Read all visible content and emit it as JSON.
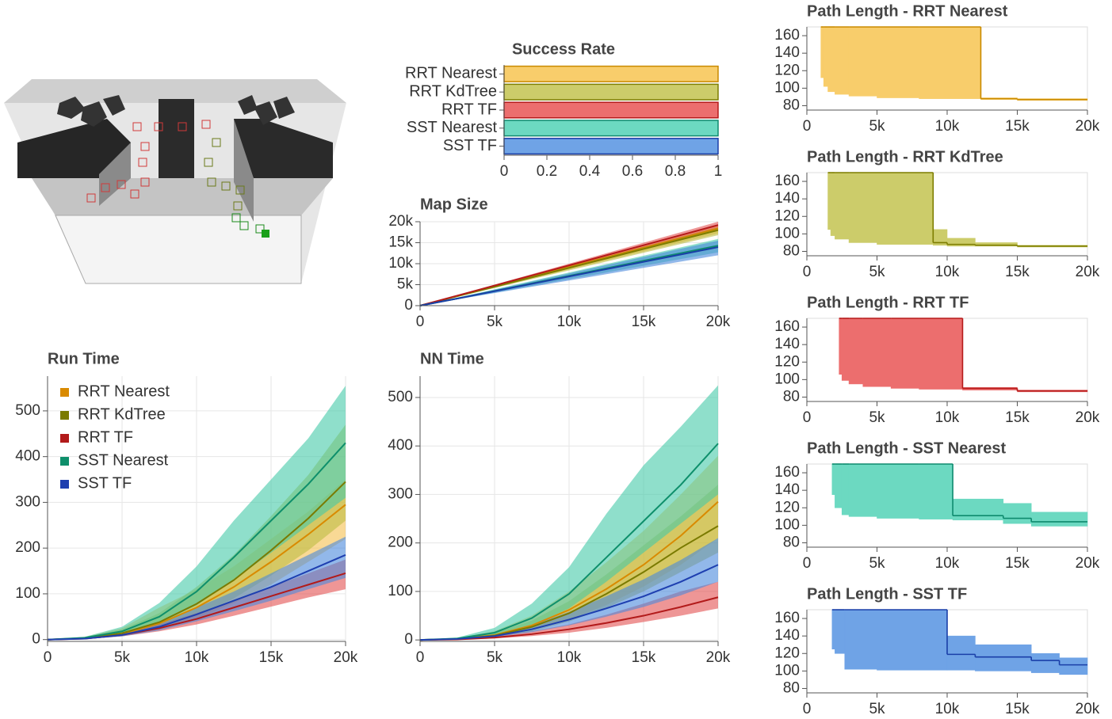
{
  "chart_data": [
    {
      "type": "barh",
      "title": "Success Rate",
      "categories": [
        "RRT Nearest",
        "RRT KdTree",
        "RRT TF",
        "SST Nearest",
        "SST TF"
      ],
      "values": [
        1,
        1,
        1,
        1,
        1
      ],
      "colors": [
        "#f8cd6b",
        "#cccc6a",
        "#ec6e6e",
        "#6cd9c1",
        "#6fa3e6"
      ],
      "edge_colors": [
        "#c98a00",
        "#7d7d00",
        "#b51a1a",
        "#0e8a6e",
        "#1a3fa8"
      ],
      "xlim": [
        0,
        1
      ],
      "xticks": [
        0,
        0.2,
        0.4,
        0.6,
        0.8,
        1
      ]
    },
    {
      "type": "line",
      "title": "Map Size",
      "grid": true,
      "x": [
        0,
        2500,
        5000,
        7500,
        10000,
        12500,
        15000,
        17500,
        20000
      ],
      "xlim": [
        0,
        20000
      ],
      "xticks": [
        0,
        {
          "value": 5000,
          "label": "5k"
        },
        {
          "value": 10000,
          "label": "10k"
        },
        {
          "value": 15000,
          "label": "15k"
        },
        {
          "value": 20000,
          "label": "20k"
        }
      ],
      "ylim": [
        0,
        20000
      ],
      "yticks": [
        0,
        {
          "value": 5000,
          "label": "5k"
        },
        {
          "value": 10000,
          "label": "10k"
        },
        {
          "value": 15000,
          "label": "15k"
        },
        {
          "value": 20000,
          "label": "20k"
        }
      ],
      "series": [
        {
          "color": "#c98a00",
          "fill": "#f5c04f",
          "values": [
            0,
            2300,
            4600,
            6900,
            9200,
            11500,
            13800,
            16100,
            18400
          ],
          "lower": [
            0,
            2150,
            4300,
            6450,
            8600,
            10750,
            12900,
            15050,
            17200
          ],
          "upper": [
            0,
            2400,
            4800,
            7200,
            9600,
            12000,
            14400,
            16800,
            19200
          ]
        },
        {
          "color": "#7d7d00",
          "fill": "#bdbd45",
          "values": [
            0,
            2250,
            4500,
            6750,
            9000,
            11250,
            13500,
            15750,
            18000
          ],
          "lower": [
            0,
            2100,
            4200,
            6300,
            8400,
            10500,
            12600,
            14700,
            16800
          ],
          "upper": [
            0,
            2350,
            4700,
            7050,
            9400,
            11750,
            14100,
            16450,
            18800
          ]
        },
        {
          "color": "#b51a1a",
          "fill": "#e35050",
          "values": [
            0,
            2400,
            4800,
            7200,
            9600,
            12000,
            14400,
            16800,
            19200
          ],
          "lower": [
            0,
            2300,
            4600,
            6900,
            9200,
            11500,
            13800,
            16100,
            18400
          ],
          "upper": [
            0,
            2500,
            5000,
            7500,
            10000,
            12500,
            15000,
            17500,
            20000
          ]
        },
        {
          "color": "#0e8a6e",
          "fill": "#45c9a8",
          "values": [
            0,
            1700,
            3500,
            5300,
            7100,
            8900,
            10700,
            12500,
            14300
          ],
          "lower": [
            0,
            1500,
            3100,
            4700,
            6300,
            7900,
            9500,
            11100,
            12700
          ],
          "upper": [
            0,
            1900,
            3900,
            5900,
            7900,
            9900,
            11900,
            13900,
            15900
          ]
        },
        {
          "color": "#1a3fa8",
          "fill": "#4a88dc",
          "values": [
            0,
            1700,
            3450,
            5200,
            6950,
            8700,
            10450,
            12200,
            13950
          ],
          "lower": [
            0,
            1500,
            3000,
            4500,
            6000,
            7500,
            9000,
            10500,
            12000
          ],
          "upper": [
            0,
            1850,
            3800,
            5750,
            7700,
            9650,
            11600,
            13550,
            15500
          ]
        }
      ]
    },
    {
      "type": "line",
      "title": "Run Time",
      "grid": true,
      "legend": "top-left",
      "x": [
        0,
        2500,
        5000,
        7500,
        10000,
        12500,
        15000,
        17500,
        20000
      ],
      "xlim": [
        0,
        20000
      ],
      "xticks": [
        0,
        {
          "value": 5000,
          "label": "5k"
        },
        {
          "value": 10000,
          "label": "10k"
        },
        {
          "value": 15000,
          "label": "15k"
        },
        {
          "value": 20000,
          "label": "20k"
        }
      ],
      "ylim": [
        -4,
        576
      ],
      "yticks": [
        0,
        100,
        200,
        300,
        400,
        500
      ],
      "series": [
        {
          "name": "RRT Nearest",
          "color": "#d98a00",
          "fill": "#f5c04f",
          "values": [
            0,
            3,
            12,
            35,
            70,
            115,
            170,
            230,
            295
          ],
          "lower": [
            0,
            2,
            8,
            22,
            45,
            80,
            120,
            170,
            220
          ],
          "upper": [
            0,
            6,
            25,
            70,
            110,
            160,
            220,
            280,
            350
          ]
        },
        {
          "name": "RRT KdTree",
          "color": "#7a7a00",
          "fill": "#bdbd45",
          "values": [
            0,
            3,
            14,
            38,
            78,
            130,
            195,
            265,
            345
          ],
          "lower": [
            0,
            2,
            9,
            25,
            52,
            90,
            140,
            195,
            260
          ],
          "upper": [
            0,
            5,
            22,
            58,
            115,
            185,
            270,
            360,
            470
          ]
        },
        {
          "name": "RRT TF",
          "color": "#b21a1a",
          "fill": "#e35050",
          "values": [
            0,
            2,
            10,
            25,
            45,
            70,
            95,
            120,
            145
          ],
          "lower": [
            0,
            1,
            7,
            18,
            33,
            52,
            72,
            92,
            110
          ],
          "upper": [
            0,
            3,
            14,
            33,
            58,
            85,
            115,
            145,
            175
          ]
        },
        {
          "name": "SST Nearest",
          "color": "#0e8f6b",
          "fill": "#45c9a8",
          "values": [
            0,
            4,
            18,
            50,
            105,
            180,
            260,
            340,
            430
          ],
          "lower": [
            0,
            3,
            12,
            35,
            75,
            130,
            190,
            250,
            310
          ],
          "upper": [
            0,
            6,
            28,
            80,
            160,
            260,
            350,
            440,
            555
          ]
        },
        {
          "name": "SST TF",
          "color": "#1e3fb0",
          "fill": "#4a88dc",
          "values": [
            0,
            2,
            10,
            28,
            55,
            85,
            115,
            150,
            185
          ],
          "lower": [
            0,
            1,
            7,
            20,
            40,
            62,
            85,
            110,
            135
          ],
          "upper": [
            0,
            3,
            14,
            36,
            70,
            105,
            145,
            185,
            225
          ]
        }
      ]
    },
    {
      "type": "line",
      "title": "NN Time",
      "grid": true,
      "x": [
        0,
        2500,
        5000,
        7500,
        10000,
        12500,
        15000,
        17500,
        20000
      ],
      "xlim": [
        0,
        20000
      ],
      "xticks": [
        0,
        {
          "value": 5000,
          "label": "5k"
        },
        {
          "value": 10000,
          "label": "10k"
        },
        {
          "value": 15000,
          "label": "15k"
        },
        {
          "value": 20000,
          "label": "20k"
        }
      ],
      "ylim": [
        -3,
        544
      ],
      "yticks": [
        0,
        100,
        200,
        300,
        400,
        500
      ],
      "series": [
        {
          "color": "#d98a00",
          "fill": "#f5c04f",
          "values": [
            0,
            2,
            10,
            30,
            62,
            105,
            155,
            215,
            285
          ],
          "lower": [
            0,
            1,
            6,
            20,
            42,
            72,
            110,
            155,
            210
          ],
          "upper": [
            0,
            4,
            18,
            50,
            100,
            160,
            225,
            300,
            380
          ]
        },
        {
          "color": "#7a7a00",
          "fill": "#bdbd45",
          "values": [
            0,
            2,
            9,
            27,
            55,
            95,
            140,
            190,
            235
          ],
          "lower": [
            0,
            1,
            6,
            18,
            38,
            66,
            100,
            140,
            180
          ],
          "upper": [
            0,
            3,
            14,
            40,
            80,
            135,
            195,
            255,
            320
          ]
        },
        {
          "color": "#b21a1a",
          "fill": "#e35050",
          "values": [
            0,
            1,
            5,
            12,
            22,
            35,
            50,
            68,
            88
          ],
          "lower": [
            0,
            1,
            3,
            8,
            15,
            25,
            37,
            50,
            65
          ],
          "upper": [
            0,
            2,
            8,
            18,
            32,
            52,
            75,
            100,
            120
          ]
        },
        {
          "color": "#0e8f6b",
          "fill": "#45c9a8",
          "values": [
            0,
            3,
            15,
            45,
            95,
            170,
            245,
            320,
            405
          ],
          "lower": [
            0,
            2,
            10,
            30,
            65,
            120,
            180,
            240,
            300
          ],
          "upper": [
            0,
            5,
            25,
            75,
            150,
            260,
            360,
            440,
            525
          ]
        },
        {
          "color": "#1e3fb0",
          "fill": "#4a88dc",
          "values": [
            0,
            2,
            8,
            22,
            42,
            65,
            90,
            120,
            155
          ],
          "lower": [
            0,
            1,
            6,
            16,
            30,
            48,
            68,
            92,
            120
          ],
          "upper": [
            0,
            3,
            11,
            30,
            58,
            90,
            125,
            165,
            210
          ]
        }
      ]
    },
    {
      "type": "step",
      "title": "Path Length - RRT Nearest",
      "color": "#c98a00",
      "fill": "#f8cd6b",
      "xlim": [
        0,
        20000
      ],
      "xticks": [
        0,
        {
          "value": 5000,
          "label": "5k"
        },
        {
          "value": 10000,
          "label": "10k"
        },
        {
          "value": 15000,
          "label": "15k"
        },
        {
          "value": 20000,
          "label": "20k"
        }
      ],
      "ylim": [
        75,
        170
      ],
      "yticks": [
        80,
        100,
        120,
        140,
        160
      ],
      "x": [
        1000,
        1200,
        1500,
        2000,
        3000,
        5000,
        8000,
        12400,
        15000
      ],
      "values": [
        170,
        170,
        170,
        170,
        170,
        170,
        170,
        88,
        87
      ],
      "lower": [
        112,
        102,
        96,
        93,
        91,
        89,
        88,
        87,
        86
      ],
      "upper": [
        170,
        170,
        170,
        170,
        170,
        170,
        170,
        89,
        88
      ]
    },
    {
      "type": "step",
      "title": "Path Length - RRT KdTree",
      "color": "#7d7d00",
      "fill": "#cccc6a",
      "xlim": [
        0,
        20000
      ],
      "xticks": [
        0,
        {
          "value": 5000,
          "label": "5k"
        },
        {
          "value": 10000,
          "label": "10k"
        },
        {
          "value": 15000,
          "label": "15k"
        },
        {
          "value": 20000,
          "label": "20k"
        }
      ],
      "ylim": [
        75,
        170
      ],
      "yticks": [
        80,
        100,
        120,
        140,
        160
      ],
      "x": [
        1500,
        1700,
        2000,
        3000,
        5000,
        9000,
        10000,
        12000,
        15000
      ],
      "values": [
        170,
        170,
        170,
        170,
        170,
        90,
        88,
        87,
        86
      ],
      "lower": [
        105,
        98,
        94,
        90,
        88,
        87,
        86,
        86,
        85
      ],
      "upper": [
        170,
        170,
        170,
        170,
        170,
        105,
        95,
        90,
        87
      ]
    },
    {
      "type": "step",
      "title": "Path Length - RRT TF",
      "color": "#b51a1a",
      "fill": "#ec6e6e",
      "xlim": [
        0,
        20000
      ],
      "xticks": [
        0,
        {
          "value": 5000,
          "label": "5k"
        },
        {
          "value": 10000,
          "label": "10k"
        },
        {
          "value": 15000,
          "label": "15k"
        },
        {
          "value": 20000,
          "label": "20k"
        }
      ],
      "ylim": [
        75,
        170
      ],
      "yticks": [
        80,
        100,
        120,
        140,
        160
      ],
      "x": [
        2300,
        2500,
        3000,
        4000,
        6000,
        8000,
        11100,
        15000
      ],
      "values": [
        170,
        170,
        170,
        170,
        170,
        170,
        90,
        87
      ],
      "lower": [
        106,
        99,
        95,
        92,
        90,
        89,
        88,
        86
      ],
      "upper": [
        170,
        170,
        170,
        170,
        170,
        170,
        91,
        88
      ]
    },
    {
      "type": "step",
      "title": "Path Length - SST Nearest",
      "color": "#0e8a6e",
      "fill": "#6cd9c1",
      "xlim": [
        0,
        20000
      ],
      "xticks": [
        0,
        {
          "value": 5000,
          "label": "5k"
        },
        {
          "value": 10000,
          "label": "10k"
        },
        {
          "value": 15000,
          "label": "15k"
        },
        {
          "value": 20000,
          "label": "20k"
        }
      ],
      "ylim": [
        75,
        170
      ],
      "yticks": [
        80,
        100,
        120,
        140,
        160
      ],
      "x": [
        1800,
        2000,
        2500,
        3000,
        5000,
        8000,
        10400,
        14000,
        16000
      ],
      "values": [
        170,
        170,
        170,
        170,
        170,
        170,
        111,
        108,
        104
      ],
      "lower": [
        135,
        120,
        112,
        110,
        108,
        107,
        106,
        102,
        99
      ],
      "upper": [
        170,
        170,
        170,
        170,
        170,
        170,
        130,
        125,
        115
      ]
    },
    {
      "type": "step",
      "title": "Path Length - SST TF",
      "color": "#1a3fa8",
      "fill": "#6fa3e6",
      "xlim": [
        0,
        20000
      ],
      "xticks": [
        0,
        {
          "value": 5000,
          "label": "5k"
        },
        {
          "value": 10000,
          "label": "10k"
        },
        {
          "value": 15000,
          "label": "15k"
        },
        {
          "value": 20000,
          "label": "20k"
        }
      ],
      "ylim": [
        75,
        170
      ],
      "yticks": [
        80,
        100,
        120,
        140,
        160
      ],
      "x": [
        1800,
        2000,
        2700,
        5000,
        10000,
        12000,
        16000,
        18000
      ],
      "values": [
        170,
        170,
        170,
        170,
        119,
        116,
        112,
        107
      ],
      "lower": [
        125,
        120,
        102,
        101,
        101,
        100,
        98,
        96
      ],
      "upper": [
        170,
        170,
        170,
        170,
        140,
        130,
        120,
        115
      ]
    }
  ]
}
